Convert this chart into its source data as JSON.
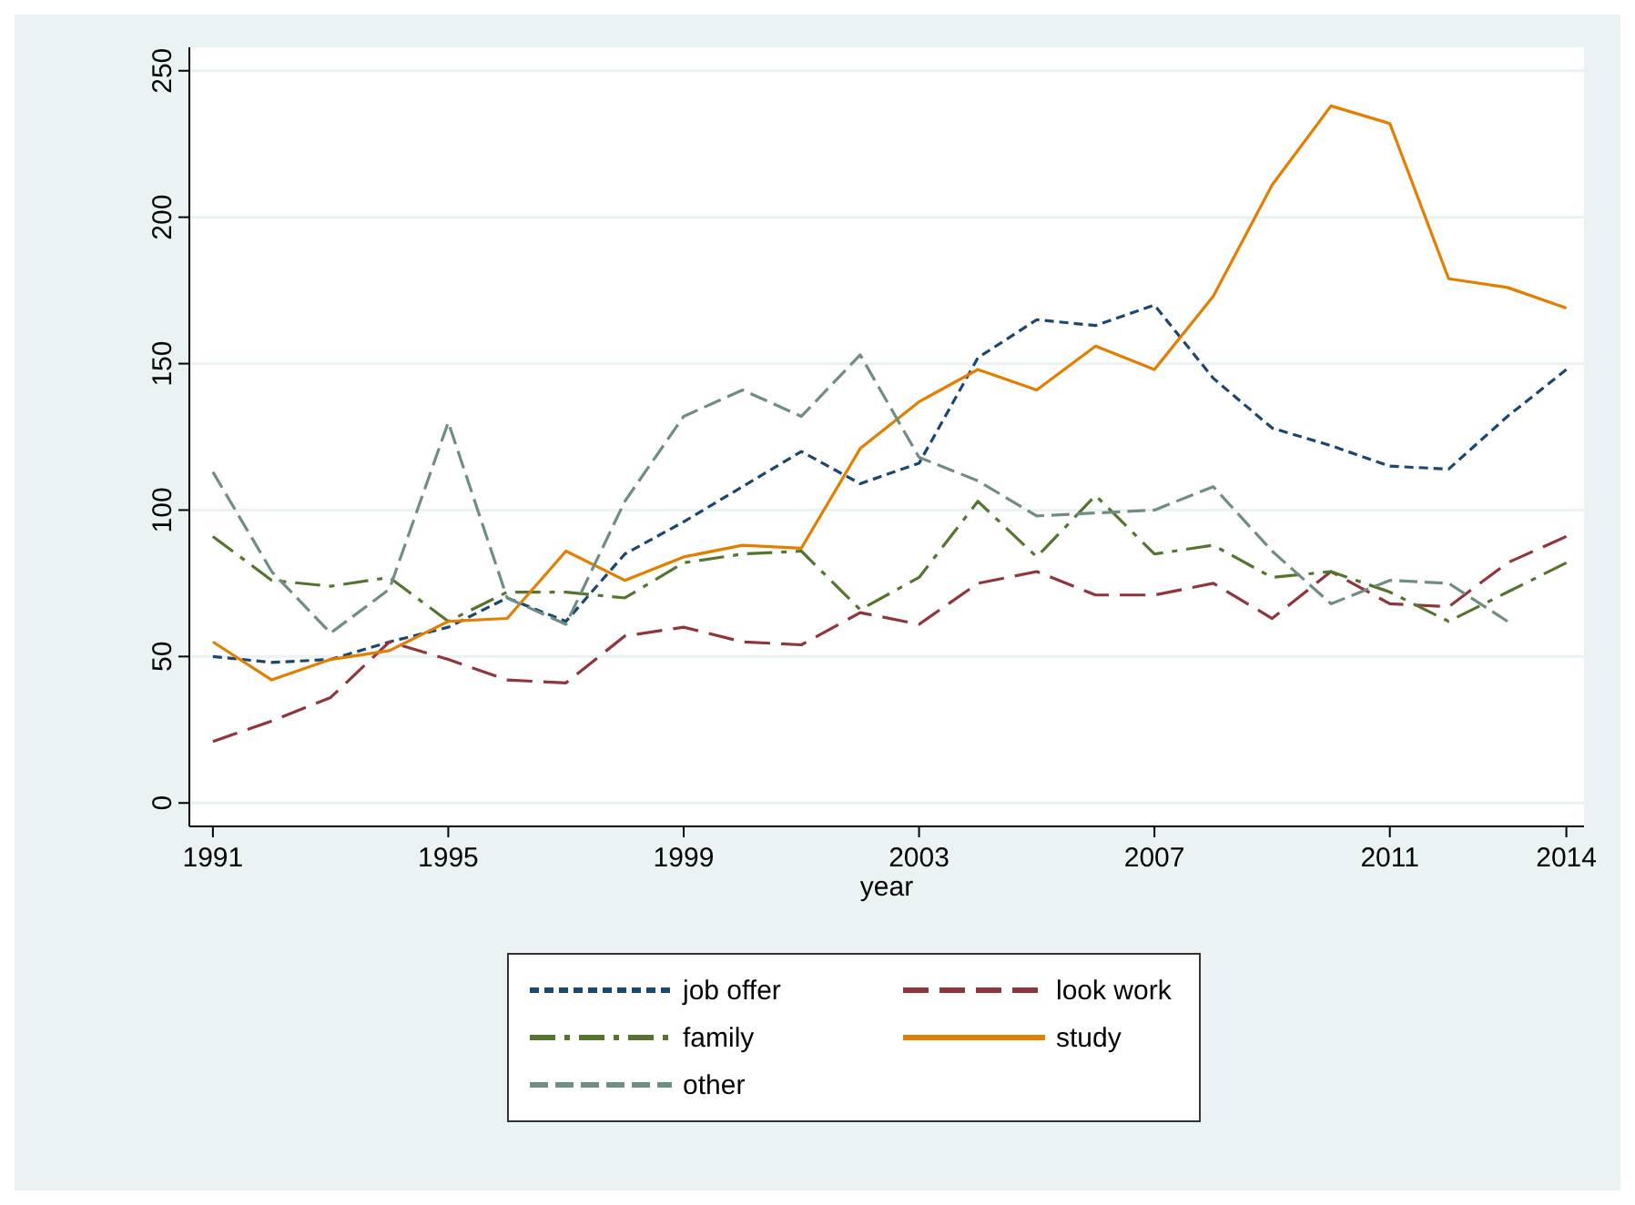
{
  "chart_data": {
    "type": "line",
    "xlabel": "year",
    "x": [
      1991,
      1992,
      1993,
      1994,
      1995,
      1996,
      1997,
      1998,
      1999,
      2000,
      2001,
      2002,
      2003,
      2004,
      2005,
      2006,
      2007,
      2008,
      2009,
      2010,
      2011,
      2012,
      2013,
      2014
    ],
    "series": [
      {
        "name": "job offer",
        "color": "#1a476f",
        "line_style": "dashed",
        "values": [
          50,
          48,
          49,
          55,
          60,
          70,
          62,
          85,
          96,
          108,
          120,
          109,
          116,
          152,
          165,
          163,
          170,
          145,
          128,
          122,
          115,
          114,
          132,
          148
        ]
      },
      {
        "name": "look work",
        "color": "#90353b",
        "line_style": "dashed",
        "values": [
          21,
          28,
          36,
          55,
          49,
          42,
          41,
          57,
          60,
          55,
          54,
          65,
          61,
          75,
          79,
          71,
          71,
          75,
          63,
          79,
          68,
          67,
          82,
          91
        ]
      },
      {
        "name": "family",
        "color": "#55752f",
        "line_style": "dashed",
        "values": [
          91,
          76,
          74,
          77,
          62,
          72,
          72,
          70,
          82,
          85,
          86,
          66,
          77,
          103,
          84,
          105,
          85,
          88,
          77,
          79,
          72,
          62,
          72,
          82
        ]
      },
      {
        "name": "study",
        "color": "#e37e00",
        "line_style": "solid",
        "values": [
          55,
          42,
          49,
          52,
          62,
          63,
          86,
          76,
          84,
          88,
          87,
          121,
          137,
          148,
          141,
          156,
          148,
          173,
          211,
          238,
          232,
          179,
          176,
          169
        ]
      },
      {
        "name": "other",
        "color": "#6e8e84",
        "line_style": "dashed",
        "values": [
          113,
          79,
          58,
          73,
          130,
          70,
          61,
          103,
          132,
          141,
          132,
          153,
          118,
          110,
          98,
          99,
          100,
          108,
          86,
          68,
          76,
          75,
          62,
          null
        ]
      }
    ],
    "xlim": [
      1990.6,
      2014.3
    ],
    "xticks": [
      1991,
      1995,
      1999,
      2003,
      2007,
      2011,
      2014
    ],
    "ylim": [
      -8,
      258
    ],
    "yticks": [
      0,
      50,
      100,
      150,
      200,
      250
    ],
    "grid": "y",
    "legend": "bottom",
    "marker": "none"
  }
}
